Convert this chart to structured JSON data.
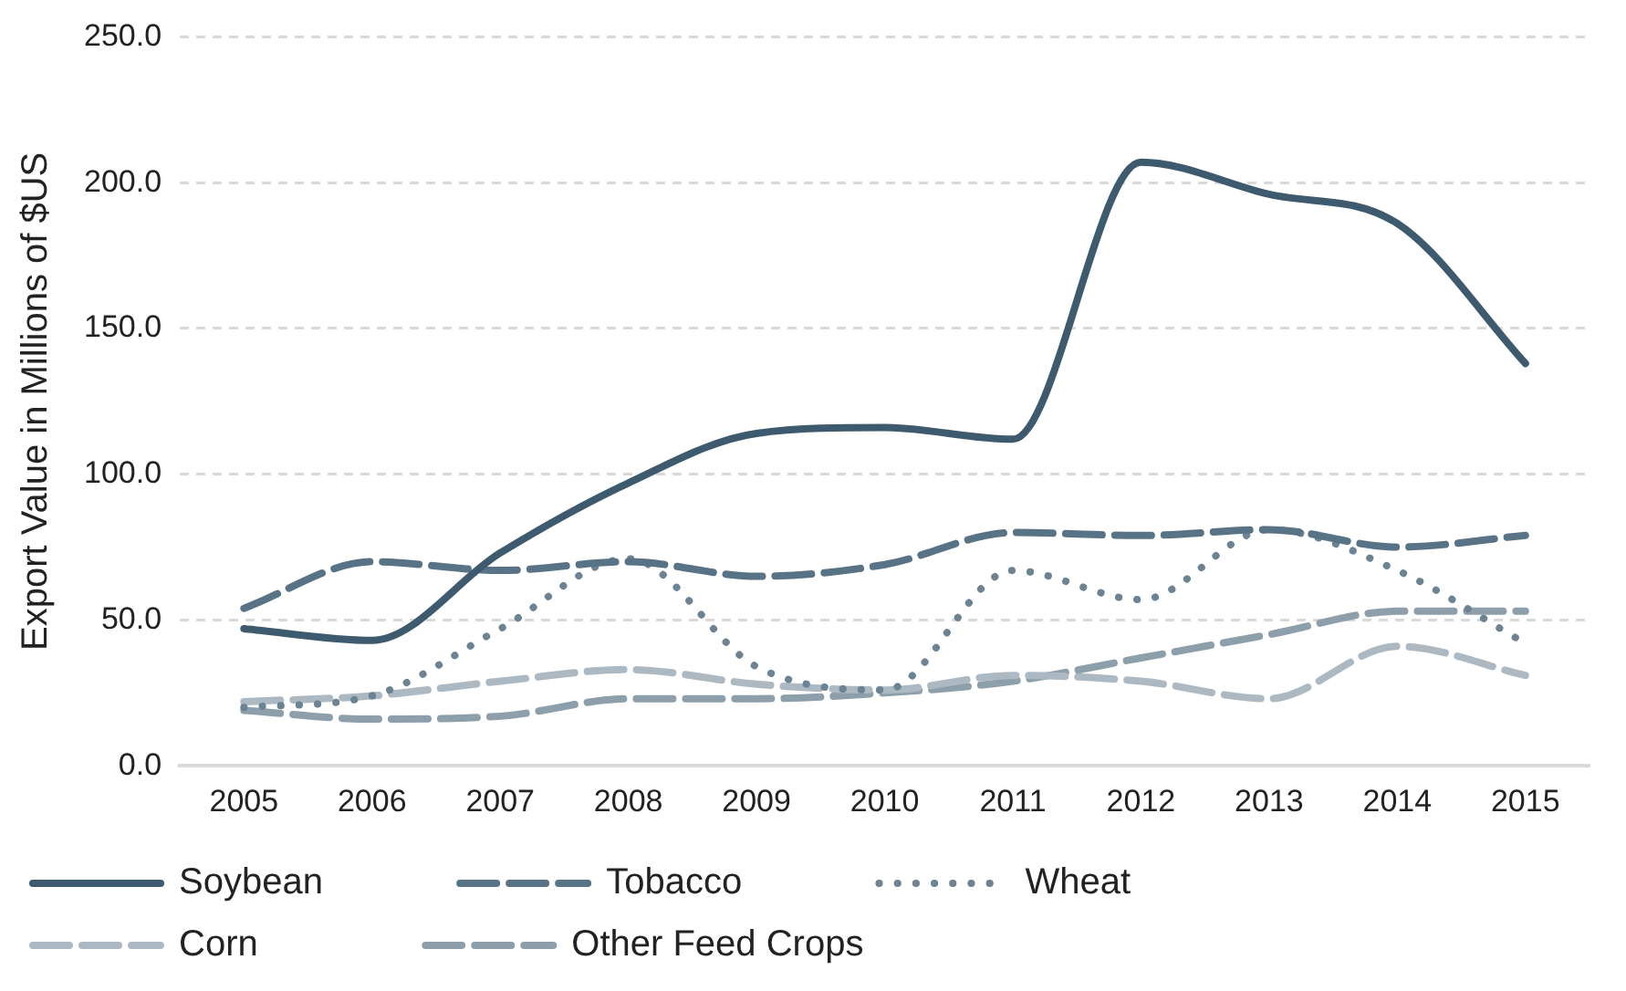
{
  "chart_data": {
    "type": "line",
    "ylabel": "Export Value in Millions of $US",
    "categories": [
      "2005",
      "2006",
      "2007",
      "2008",
      "2009",
      "2010",
      "2011",
      "2012",
      "2013",
      "2014",
      "2015"
    ],
    "series": [
      {
        "name": "Soybean",
        "color": "#3d5a6e",
        "line_style": "solid",
        "values": [
          47,
          43,
          73,
          97,
          114,
          116,
          112,
          207,
          196,
          186,
          138
        ]
      },
      {
        "name": "Tobacco",
        "color": "#587386",
        "line_style": "dashed",
        "values": [
          54,
          70,
          67,
          70,
          65,
          69,
          80,
          79,
          81,
          75,
          79
        ]
      },
      {
        "name": "Wheat",
        "color": "#6b8393",
        "line_style": "dotted",
        "values": [
          20,
          24,
          47,
          71,
          34,
          26,
          67,
          57,
          81,
          67,
          42
        ]
      },
      {
        "name": "Corn",
        "color": "#adb9c2",
        "line_style": "dashed",
        "values": [
          22,
          24,
          29,
          33,
          28,
          26,
          31,
          29,
          23,
          41,
          31
        ]
      },
      {
        "name": "Other Feed Crops",
        "color": "#8c9faa",
        "line_style": "dashed",
        "values": [
          19,
          16,
          17,
          23,
          23,
          25,
          29,
          37,
          45,
          53,
          53
        ]
      }
    ],
    "ylim": [
      0,
      250
    ],
    "yticks": [
      {
        "value": 0,
        "label": "0.0"
      },
      {
        "value": 50,
        "label": "50.0"
      },
      {
        "value": 100,
        "label": "100.0"
      },
      {
        "value": 150,
        "label": "150.0"
      },
      {
        "value": 200,
        "label": "200.0"
      },
      {
        "value": 250,
        "label": "250.0"
      }
    ],
    "grid": "y",
    "legend": "bottom",
    "marker": "none"
  }
}
